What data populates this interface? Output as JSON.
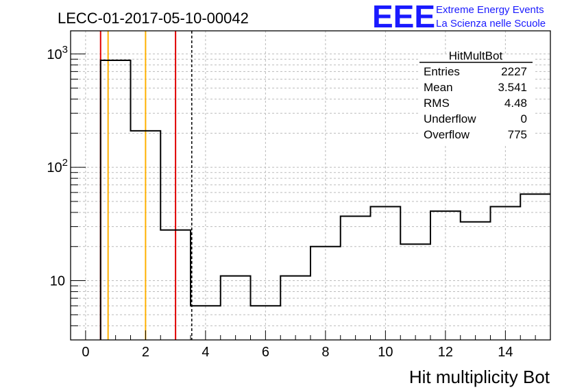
{
  "title": "LECC-01-2017-05-10-00042",
  "logo": {
    "mark": "EEE",
    "line1": "Extreme Energy Events",
    "line2": "La Scienza nelle Scuole",
    "color": "#1a1aff"
  },
  "stats_box": {
    "name": "HitMultBot",
    "rows": [
      {
        "label": "Entries",
        "value": "2227"
      },
      {
        "label": "Mean",
        "value": "3.541"
      },
      {
        "label": "RMS",
        "value": "4.48"
      },
      {
        "label": "Underflow",
        "value": "0"
      },
      {
        "label": "Overflow",
        "value": "775"
      }
    ]
  },
  "chart_data": {
    "type": "bar",
    "style": "step-histogram",
    "xlabel": "Hit multiplicity Bot",
    "ylabel": "",
    "xlim": [
      -0.5,
      15.5
    ],
    "ylim": [
      3,
      1600
    ],
    "yscale": "log",
    "grid": true,
    "x_ticks": [
      "0",
      "2",
      "4",
      "6",
      "8",
      "10",
      "12",
      "14"
    ],
    "y_ticks": [
      {
        "value": 10,
        "base": "10",
        "exp": ""
      },
      {
        "value": 100,
        "base": "10",
        "exp": "2"
      },
      {
        "value": 1000,
        "base": "10",
        "exp": "3"
      }
    ],
    "bins": [
      {
        "low": 0.5,
        "high": 1.5,
        "value": 880
      },
      {
        "low": 1.5,
        "high": 2.5,
        "value": 210
      },
      {
        "low": 2.5,
        "high": 3.5,
        "value": 28
      },
      {
        "low": 3.5,
        "high": 4.5,
        "value": 6
      },
      {
        "low": 4.5,
        "high": 5.5,
        "value": 11
      },
      {
        "low": 5.5,
        "high": 6.5,
        "value": 6
      },
      {
        "low": 6.5,
        "high": 7.5,
        "value": 11
      },
      {
        "low": 7.5,
        "high": 8.5,
        "value": 20
      },
      {
        "low": 8.5,
        "high": 9.5,
        "value": 37
      },
      {
        "low": 9.5,
        "high": 10.5,
        "value": 45
      },
      {
        "low": 10.5,
        "high": 11.5,
        "value": 21
      },
      {
        "low": 11.5,
        "high": 12.5,
        "value": 41
      },
      {
        "low": 12.5,
        "high": 13.5,
        "value": 33
      },
      {
        "low": 13.5,
        "high": 14.5,
        "value": 45
      },
      {
        "low": 14.5,
        "high": 15.5,
        "value": 58
      }
    ],
    "vertical_lines": [
      {
        "x": 0.5,
        "color": "#e00000",
        "style": "solid"
      },
      {
        "x": 0.75,
        "color": "#ffb000",
        "style": "solid"
      },
      {
        "x": 2.0,
        "color": "#ffb000",
        "style": "solid"
      },
      {
        "x": 3.0,
        "color": "#e00000",
        "style": "solid"
      },
      {
        "x": 3.541,
        "color": "#000000",
        "style": "dashed"
      }
    ]
  }
}
